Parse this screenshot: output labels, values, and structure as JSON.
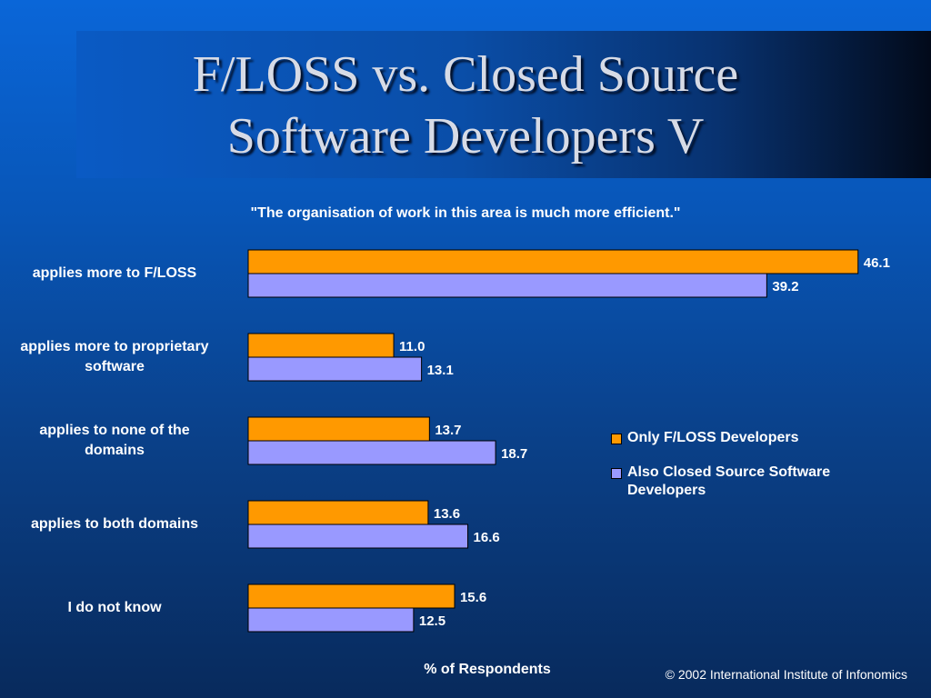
{
  "slide": {
    "title_line1": "F/LOSS vs. Closed Source",
    "title_line2": "Software Developers V",
    "copyright": "© 2002 International Institute of Infonomics"
  },
  "chart_data": {
    "type": "bar",
    "orientation": "horizontal",
    "title": "\"The organisation of work in this area is much more efficient.\"",
    "xlabel": "% of Respondents",
    "ylabel": "",
    "categories": [
      [
        "applies more to F/LOSS"
      ],
      [
        "applies more to proprietary",
        "software"
      ],
      [
        "applies to none of the",
        "domains"
      ],
      [
        "applies to both domains"
      ],
      [
        "I do not know"
      ]
    ],
    "series": [
      {
        "name": "Only F/LOSS Developers",
        "color": "#ff9900",
        "values": [
          46.1,
          11.0,
          13.7,
          13.6,
          15.6
        ],
        "labels": [
          "46.1",
          "11.0",
          "13.7",
          "13.6",
          "15.6"
        ]
      },
      {
        "name": "Also Closed Source Software Developers",
        "color": "#9999ff",
        "values": [
          39.2,
          13.1,
          18.7,
          16.6,
          12.5
        ],
        "labels": [
          "39.2",
          "13.1",
          "18.7",
          "16.6",
          "12.5"
        ]
      }
    ],
    "legend_position": "right",
    "grid": false
  }
}
